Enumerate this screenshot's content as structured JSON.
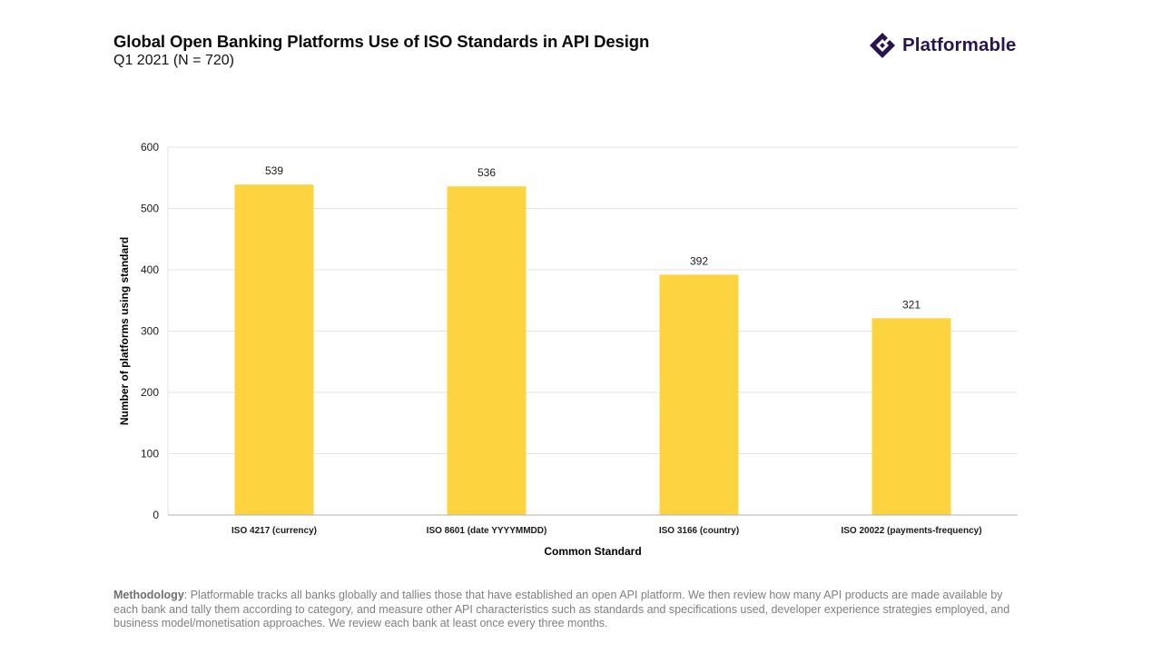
{
  "header": {
    "title": "Global Open Banking Platforms Use of ISO Standards in API Design",
    "subtitle": "Q1 2021 (N = 720)"
  },
  "logo": {
    "text": "Platformable",
    "icon": "diamond-logo-icon",
    "color": "#2a1450"
  },
  "chart_data": {
    "type": "bar",
    "categories": [
      "ISO 4217 (currency)",
      "ISO 8601 (date YYYYMMDD)",
      "ISO 3166 (country)",
      "ISO 20022 (payments-frequency)"
    ],
    "values": [
      539,
      536,
      392,
      321
    ],
    "data_labels": [
      "539",
      "536",
      "392",
      "321"
    ],
    "xlabel": "Common Standard",
    "ylabel": "Number of platforms using standard",
    "ylim": [
      0,
      600
    ],
    "yticks": [
      0,
      100,
      200,
      300,
      400,
      500,
      600
    ],
    "grid": true,
    "legend": "none",
    "bar_color": "#fdd440"
  },
  "footer": {
    "methodology_label": "Methodology",
    "methodology_text": ": Platformable tracks all banks globally and tallies those that have established an open API platform. We then review how many API products are made available by each bank and tally them according to category, and measure other API characteristics such as standards and specifications used, developer experience strategies employed, and business model/monetisation approaches. We review each bank at least once every three months."
  }
}
